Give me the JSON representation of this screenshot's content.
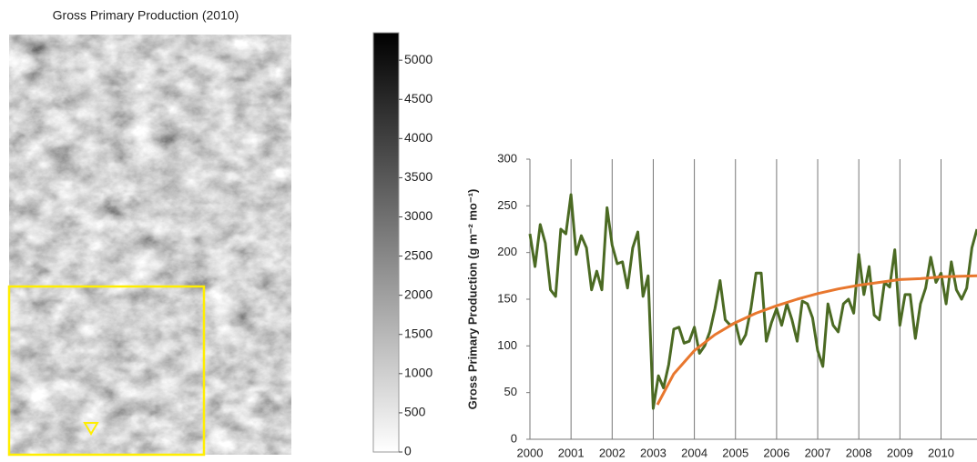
{
  "chart_data": [
    {
      "type": "colorbar",
      "title": "Gross Primary Production (2010)",
      "colormap": [
        "#ffffff",
        "#000000"
      ],
      "ylim": [
        0,
        5350
      ],
      "yticks": [
        0,
        500,
        1000,
        1500,
        2000,
        2500,
        3000,
        3500,
        4000,
        4500,
        5000
      ]
    },
    {
      "type": "line",
      "y_label": "Gross Primary Production (g m⁻² mo⁻¹)",
      "xlim": [
        2000,
        2010.875
      ],
      "xticks": [
        2000,
        2001,
        2002,
        2003,
        2004,
        2005,
        2006,
        2007,
        2008,
        2009,
        2010
      ],
      "ylim": [
        0,
        300
      ],
      "yticks": [
        0,
        50,
        100,
        150,
        200,
        250,
        300
      ],
      "grid": "x",
      "series": [
        {
          "color": "#4b6a23",
          "x": [
            2000,
            2000.125,
            2000.25,
            2000.375,
            2000.5,
            2000.625,
            2000.75,
            2000.875,
            2001,
            2001.125,
            2001.25,
            2001.375,
            2001.5,
            2001.625,
            2001.75,
            2001.875,
            2002,
            2002.125,
            2002.25,
            2002.375,
            2002.5,
            2002.625,
            2002.75,
            2002.875,
            2003,
            2003.125,
            2003.25,
            2003.375,
            2003.5,
            2003.625,
            2003.75,
            2003.875,
            2004,
            2004.125,
            2004.25,
            2004.375,
            2004.5,
            2004.625,
            2004.75,
            2004.875,
            2005,
            2005.125,
            2005.25,
            2005.375,
            2005.5,
            2005.625,
            2005.75,
            2005.875,
            2006,
            2006.125,
            2006.25,
            2006.375,
            2006.5,
            2006.625,
            2006.75,
            2006.875,
            2007,
            2007.125,
            2007.25,
            2007.375,
            2007.5,
            2007.625,
            2007.75,
            2007.875,
            2008,
            2008.125,
            2008.25,
            2008.375,
            2008.5,
            2008.625,
            2008.75,
            2008.875,
            2009,
            2009.125,
            2009.25,
            2009.375,
            2009.5,
            2009.625,
            2009.75,
            2009.875,
            2010,
            2010.125,
            2010.25,
            2010.375,
            2010.5,
            2010.625,
            2010.75,
            2010.875
          ],
          "values": [
            220,
            185,
            230,
            210,
            160,
            153,
            225,
            220,
            262,
            198,
            218,
            205,
            160,
            180,
            160,
            248,
            208,
            188,
            190,
            162,
            205,
            222,
            153,
            175,
            33,
            68,
            55,
            80,
            118,
            120,
            103,
            105,
            120,
            92,
            100,
            115,
            140,
            170,
            128,
            122,
            125,
            102,
            112,
            140,
            178,
            178,
            105,
            125,
            140,
            122,
            145,
            128,
            105,
            148,
            145,
            130,
            95,
            78,
            145,
            122,
            115,
            145,
            150,
            135,
            198,
            155,
            185,
            133,
            128,
            168,
            163,
            203,
            122,
            155,
            155,
            108,
            145,
            162,
            195,
            168,
            178,
            145,
            190,
            160,
            150,
            162,
            205,
            225
          ]
        },
        {
          "color": "#e8772e",
          "x": [
            2003.1,
            2003.5,
            2004,
            2004.5,
            2005,
            2005.5,
            2006,
            2006.5,
            2007,
            2007.5,
            2008,
            2008.5,
            2009,
            2009.5,
            2010,
            2010.875
          ],
          "values": [
            37,
            70,
            95,
            112,
            125,
            135,
            143,
            150,
            156,
            161,
            165,
            168,
            171,
            172,
            174,
            175
          ]
        }
      ]
    }
  ]
}
